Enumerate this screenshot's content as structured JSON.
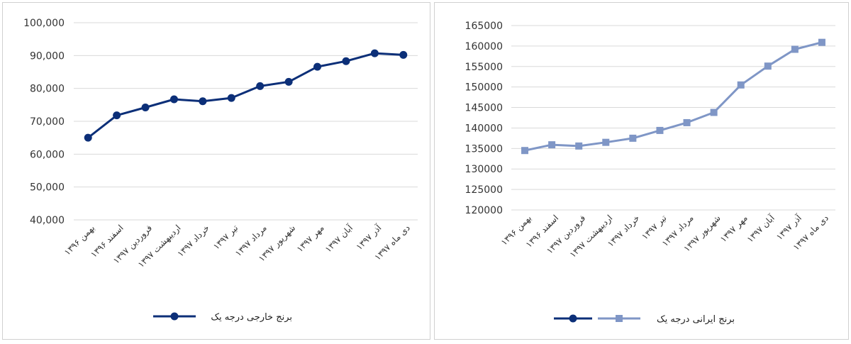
{
  "chart_data": [
    {
      "type": "line",
      "categories": [
        "بهمن ۱۳۹۶",
        "اسفند ۱۳۹۶",
        "فروردین ۱۳۹۷",
        "اردیبهشت ۱۳۹۷",
        "خرداد ۱۳۹۷",
        "تیر ۱۳۹۷",
        "مرداد ۱۳۹۷",
        "شهریور ۱۳۹۷",
        "مهر ۱۳۹۷",
        "آبان ۱۳۹۷",
        "آذر ۱۳۹۷",
        "دی ماه ۱۳۹۷"
      ],
      "series": [
        {
          "name": "برنج خارجی درجه یک",
          "values": [
            65000,
            71800,
            74200,
            76700,
            76100,
            77100,
            80700,
            82000,
            86600,
            88300,
            90700,
            90200
          ],
          "color": "#0c2f78",
          "marker": "circle"
        }
      ],
      "yticks": [
        "40,000",
        "50,000",
        "60,000",
        "70,000",
        "80,000",
        "90,000",
        "100,000"
      ],
      "ylim": [
        40000,
        100000
      ],
      "grid": true,
      "legend_position": "bottom"
    },
    {
      "type": "line",
      "categories": [
        "بهمن ۱۳۹۶",
        "اسفند ۱۳۹۶",
        "فروردین ۱۳۹۷",
        "اردیبهشت ۱۳۹۷",
        "خرداد ۱۳۹۷",
        "تیر ۱۳۹۷",
        "مرداد ۱۳۹۷",
        "شهریور ۱۳۹۷",
        "مهر ۱۳۹۷",
        "آبان ۱۳۹۷",
        "آذر ۱۳۹۷",
        "دی ماه ۱۳۹۷"
      ],
      "series": [
        {
          "name": "برنج ایرانی درجه یک",
          "values": [
            134500,
            135900,
            135600,
            136500,
            137500,
            139400,
            141300,
            143800,
            150500,
            155100,
            159200,
            160900
          ],
          "color": "#7f96c6",
          "marker": "square"
        }
      ],
      "yticks": [
        "120000",
        "125000",
        "130000",
        "135000",
        "140000",
        "145000",
        "150000",
        "155000",
        "160000",
        "165000"
      ],
      "ylim": [
        120000,
        165000
      ],
      "grid": true,
      "legend_position": "bottom",
      "legend_extra_marker_color": "#0c2f78"
    }
  ]
}
